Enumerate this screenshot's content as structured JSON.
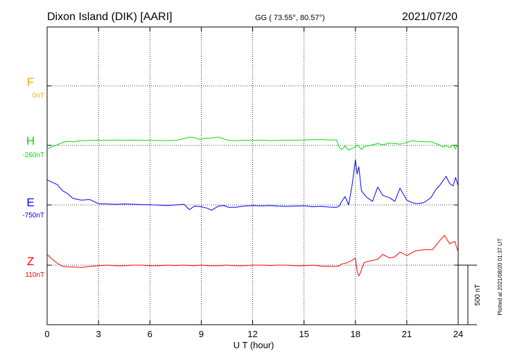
{
  "header": {
    "station": "Dixon Island (DIK)  [AARI]",
    "coords": "GG ( 73.55°,  80.57°)",
    "date": "2021/07/20"
  },
  "footer": {
    "plotted": "Plotted at 2021/08/20 01:37 UT"
  },
  "scale": {
    "label": "500 nT"
  },
  "chart_data": {
    "type": "line",
    "xlabel": "U T (hour)",
    "xlim": [
      0,
      24
    ],
    "xticks": [
      0,
      3,
      6,
      9,
      12,
      15,
      18,
      21,
      24
    ],
    "ylabel": "",
    "grid": true,
    "series": [
      {
        "name": "F",
        "offset_label": "0nT",
        "color": "#ffa500",
        "x": [],
        "y": []
      },
      {
        "name": "H",
        "offset_label": "-260nT",
        "color": "#00e000",
        "x": [
          0,
          0.3,
          0.6,
          0.9,
          1.2,
          1.5,
          2,
          2.5,
          3,
          3.5,
          4,
          4.5,
          5,
          5.5,
          6,
          6.5,
          7,
          7.5,
          8,
          8.3,
          8.6,
          8.9,
          9.2,
          9.6,
          10,
          10.3,
          10.6,
          11,
          11.5,
          12,
          12.5,
          13,
          13.5,
          14,
          14.5,
          15,
          15.5,
          16,
          16.5,
          16.9,
          17.05,
          17.2,
          17.4,
          17.6,
          17.8,
          18,
          18.1,
          18.2,
          18.35,
          18.5,
          18.7,
          19,
          19.3,
          19.6,
          20,
          20.3,
          20.6,
          21,
          21.3,
          21.6,
          22,
          22.4,
          22.7,
          22.9,
          23.1,
          23.3,
          23.5,
          23.7,
          23.85,
          24
        ],
        "y": [
          -30,
          -10,
          5,
          25,
          35,
          30,
          40,
          42,
          44,
          42,
          45,
          43,
          44,
          43,
          42,
          41,
          40,
          43,
          55,
          70,
          65,
          50,
          58,
          62,
          70,
          55,
          42,
          40,
          43,
          42,
          44,
          40,
          42,
          43,
          44,
          45,
          48,
          49,
          46,
          46,
          -20,
          -35,
          -5,
          -40,
          -25,
          -15,
          5,
          -10,
          -35,
          -10,
          -5,
          5,
          15,
          5,
          20,
          15,
          10,
          25,
          40,
          35,
          30,
          30,
          15,
          5,
          -15,
          0,
          -20,
          5,
          -30,
          10
        ],
        "note": "y in nT relative to the plotted H baseline (-260nT); values read off the trace"
      },
      {
        "name": "E",
        "offset_label": "-750nT",
        "color": "#0000ff",
        "x": [
          0,
          0.3,
          0.6,
          0.9,
          1.2,
          1.5,
          2,
          2.5,
          3,
          3.5,
          4,
          4.5,
          5,
          5.5,
          6,
          6.5,
          7,
          7.5,
          8,
          8.3,
          8.6,
          9,
          9.3,
          9.6,
          10,
          10.3,
          10.6,
          11,
          11.5,
          12,
          12.5,
          13,
          13.5,
          14,
          14.5,
          15,
          15.5,
          16,
          16.5,
          16.9,
          17.05,
          17.2,
          17.4,
          17.6,
          17.8,
          18,
          18.1,
          18.2,
          18.35,
          18.5,
          18.7,
          19,
          19.3,
          19.6,
          20,
          20.3,
          20.6,
          21,
          21.3,
          21.6,
          22,
          22.4,
          22.7,
          22.9,
          23.1,
          23.3,
          23.5,
          23.7,
          23.85,
          24
        ],
        "y": [
          210,
          190,
          170,
          120,
          95,
          55,
          40,
          45,
          10,
          8,
          5,
          8,
          6,
          3,
          2,
          -2,
          -5,
          0,
          5,
          -40,
          -10,
          -15,
          -25,
          -45,
          -10,
          -5,
          -20,
          -20,
          -10,
          -5,
          -8,
          -5,
          -10,
          -12,
          -10,
          -8,
          -15,
          -12,
          -18,
          -20,
          -10,
          30,
          70,
          0,
          160,
          380,
          260,
          320,
          120,
          90,
          60,
          30,
          150,
          80,
          60,
          30,
          140,
          40,
          20,
          10,
          20,
          60,
          130,
          160,
          200,
          240,
          180,
          160,
          230,
          160
        ],
        "note": "y in nT relative to the plotted E baseline (-750nT); values read off the trace"
      },
      {
        "name": "Z",
        "offset_label": "110nT",
        "color": "#ff0000",
        "x": [
          0,
          0.3,
          0.6,
          0.9,
          1.2,
          1.5,
          2,
          2.5,
          3,
          3.5,
          4,
          4.5,
          5,
          5.5,
          6,
          6.5,
          7,
          7.5,
          8,
          8.5,
          9,
          9.5,
          10,
          10.5,
          11,
          11.5,
          12,
          12.5,
          13,
          13.5,
          14,
          14.5,
          15,
          15.5,
          16,
          16.5,
          17,
          17.2,
          17.5,
          17.8,
          18,
          18.1,
          18.2,
          18.3,
          18.5,
          18.7,
          19,
          19.3,
          19.6,
          20,
          20.3,
          20.6,
          21,
          21.5,
          22,
          22.5,
          23,
          23.2,
          23.5,
          23.8,
          24
        ],
        "y": [
          90,
          50,
          15,
          -10,
          -15,
          -15,
          -20,
          -10,
          -5,
          0,
          -5,
          -5,
          0,
          0,
          -5,
          -5,
          0,
          -3,
          0,
          -5,
          0,
          -5,
          -5,
          0,
          -5,
          -5,
          0,
          0,
          -3,
          0,
          0,
          -5,
          -5,
          0,
          -8,
          -10,
          -10,
          10,
          20,
          40,
          60,
          -50,
          -90,
          -60,
          20,
          30,
          40,
          50,
          90,
          60,
          70,
          110,
          80,
          120,
          130,
          130,
          220,
          250,
          180,
          200,
          110
        ],
        "note": "y in nT relative to the plotted Z baseline (110nT); values read off the trace"
      }
    ]
  }
}
